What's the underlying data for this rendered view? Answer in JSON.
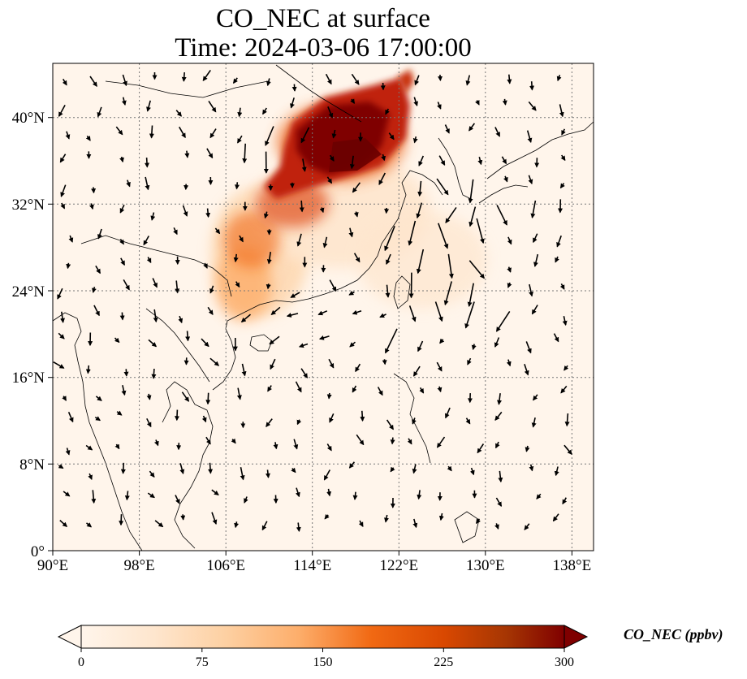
{
  "title_line1": "CO_NEC at surface",
  "title_line2": "Time: 2024-03-06 17:00:00",
  "map": {
    "lon_range": [
      90,
      140
    ],
    "lat_range": [
      0,
      45
    ],
    "gridlines": true,
    "lon_ticks": [
      "90°E",
      "98°E",
      "106°E",
      "114°E",
      "122°E",
      "130°E",
      "138°E"
    ],
    "lat_ticks": [
      "0°",
      "8°N",
      "16°N",
      "24°N",
      "32°N",
      "40°N"
    ]
  },
  "colorbar": {
    "label": "CO_NEC (ppbv)",
    "ticks": [
      "0",
      "75",
      "150",
      "225",
      "300"
    ],
    "min": 0,
    "max": 300,
    "extend": "both",
    "colormap": [
      "#fff5eb",
      "#fee6ce",
      "#fdd0a2",
      "#fdae6b",
      "#f16913",
      "#d94801",
      "#a63603",
      "#7f0000"
    ]
  },
  "colors": {
    "background_field": "#fff5eb",
    "coastline": "#000000",
    "vector": "#000000"
  }
}
